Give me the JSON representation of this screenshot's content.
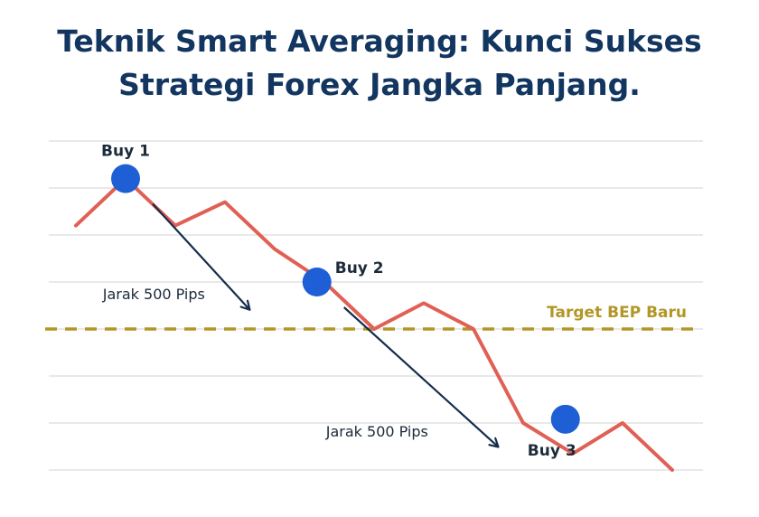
{
  "title": {
    "line1": "Teknik Smart Averaging: Kunci Sukses",
    "line2": "Strategi Forex Jangka Panjang."
  },
  "chart_data": {
    "type": "line",
    "grid": "horizontal",
    "gridlines": 8,
    "price_path": [
      {
        "step": 0,
        "level": 5.2
      },
      {
        "step": 1,
        "level": 6.2
      },
      {
        "step": 2,
        "level": 5.2
      },
      {
        "step": 3,
        "level": 5.7
      },
      {
        "step": 4,
        "level": 4.7
      },
      {
        "step": 5,
        "level": 4.0
      },
      {
        "step": 6,
        "level": 3.0
      },
      {
        "step": 7,
        "level": 3.55
      },
      {
        "step": 8,
        "level": 3.0
      },
      {
        "step": 9,
        "level": 1.0
      },
      {
        "step": 10,
        "level": 0.35
      },
      {
        "step": 11,
        "level": 1.0
      },
      {
        "step": 12,
        "level": 0.0
      }
    ],
    "entries": [
      {
        "label": "Buy 1",
        "step": 1,
        "level": 6.2
      },
      {
        "label": "Buy 2",
        "step": 4.85,
        "level": 4.0
      },
      {
        "label": "Buy 3",
        "step": 9.85,
        "level": 1.08
      }
    ],
    "target_line": {
      "label": "Target BEP Baru",
      "level": 3.0
    },
    "distances": [
      {
        "label": "Jarak 500 Pips"
      },
      {
        "label": "Jarak 500 Pips"
      }
    ],
    "colors": {
      "line": "#e06055",
      "marker": "#1f5fd6",
      "target": "#b29626",
      "arrow": "#152c4c",
      "grid": "#dcdcdc"
    }
  }
}
